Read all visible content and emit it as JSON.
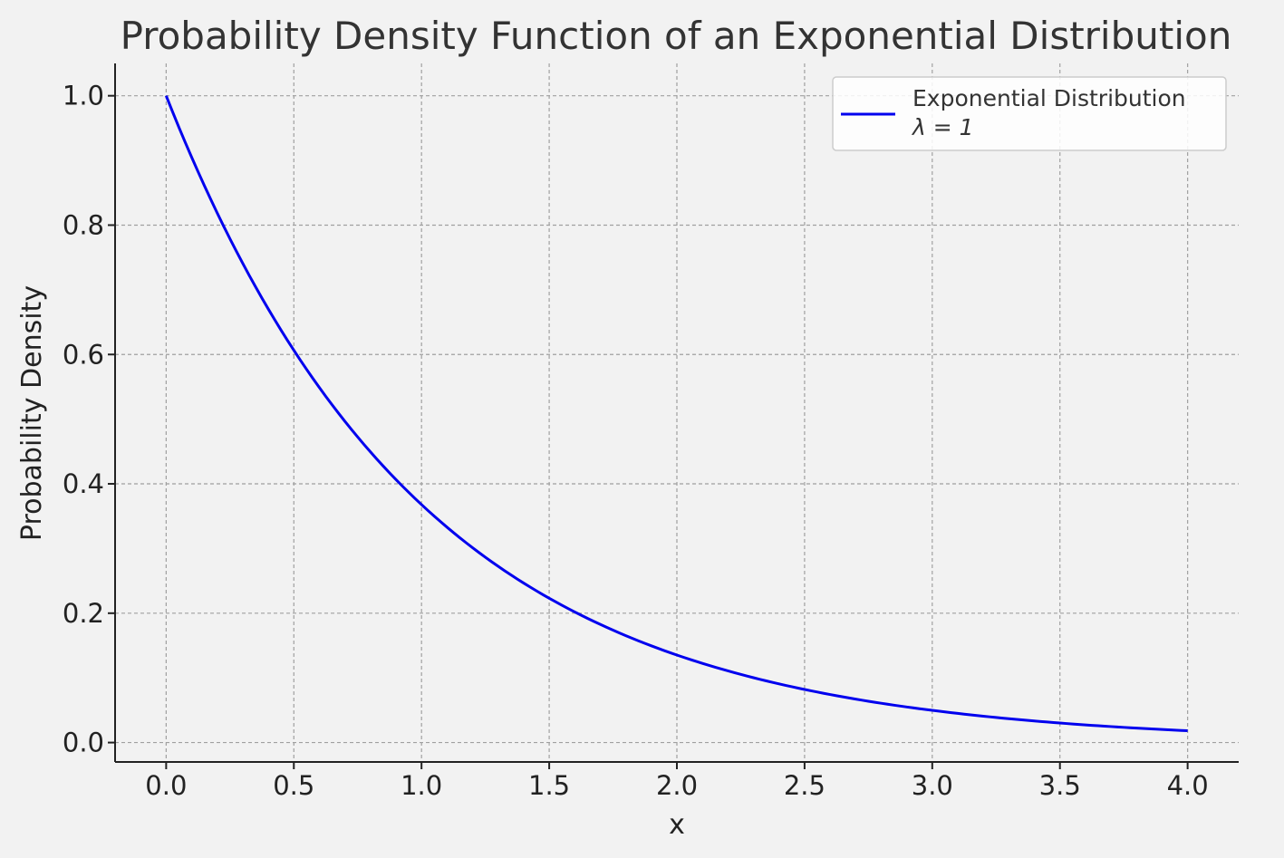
{
  "chart_data": {
    "type": "line",
    "title": "Probability Density Function of an Exponential Distribution",
    "xlabel": "x",
    "ylabel": "Probability Density",
    "xlim": [
      -0.2,
      4.2
    ],
    "ylim": [
      -0.03,
      1.05
    ],
    "x_ticks": [
      0.0,
      0.5,
      1.0,
      1.5,
      2.0,
      2.5,
      3.0,
      3.5,
      4.0
    ],
    "x_tick_labels": [
      "0.0",
      "0.5",
      "1.0",
      "1.5",
      "2.0",
      "2.5",
      "3.0",
      "3.5",
      "4.0"
    ],
    "y_ticks": [
      0.0,
      0.2,
      0.4,
      0.6,
      0.8,
      1.0
    ],
    "y_tick_labels": [
      "0.0",
      "0.2",
      "0.4",
      "0.6",
      "0.8",
      "1.0"
    ],
    "grid": true,
    "legend_position": "top-right",
    "series": [
      {
        "name_line1": "Exponential Distribution",
        "name_line2": "λ = 1",
        "color": "#0000ee",
        "x": [
          0.0,
          0.25,
          0.5,
          0.75,
          1.0,
          1.25,
          1.5,
          1.75,
          2.0,
          2.25,
          2.5,
          2.75,
          3.0,
          3.25,
          3.5,
          3.75,
          4.0
        ],
        "y": [
          1.0,
          0.7788,
          0.6065,
          0.4724,
          0.3679,
          0.2865,
          0.2231,
          0.1738,
          0.1353,
          0.1054,
          0.0821,
          0.0639,
          0.0498,
          0.0388,
          0.0302,
          0.0235,
          0.0183
        ]
      }
    ]
  }
}
